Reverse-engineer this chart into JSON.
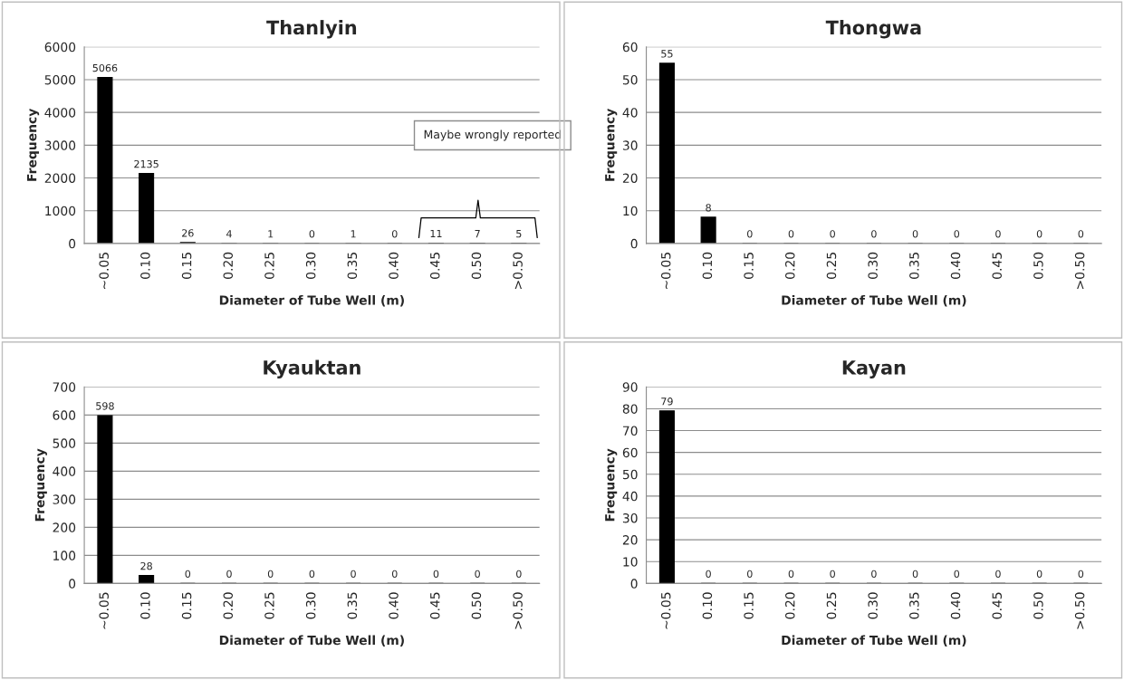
{
  "chart_data": [
    {
      "type": "bar",
      "title": "Thanlyin",
      "xlabel": "Diameter of Tube Well (m)",
      "ylabel": "Frequency",
      "categories": [
        "~0.05",
        "0.10",
        "0.15",
        "0.20",
        "0.25",
        "0.30",
        "0.35",
        "0.40",
        "0.45",
        "0.50",
        ">0.50"
      ],
      "values": [
        5066,
        2135,
        26,
        4,
        1,
        0,
        1,
        0,
        11,
        7,
        5
      ],
      "color": "#000000",
      "ylim": [
        0,
        6000
      ],
      "yticks": [
        0,
        1000,
        2000,
        3000,
        4000,
        5000,
        6000
      ],
      "grid": "y",
      "data_labels": true,
      "annotations": [
        "Maybe wrongly reported"
      ]
    },
    {
      "type": "bar",
      "title": "Thongwa",
      "xlabel": "Diameter of Tube Well (m)",
      "ylabel": "Frequency",
      "categories": [
        "~0.05",
        "0.10",
        "0.15",
        "0.20",
        "0.25",
        "0.30",
        "0.35",
        "0.40",
        "0.45",
        "0.50",
        ">0.50"
      ],
      "values": [
        55,
        8,
        0,
        0,
        0,
        0,
        0,
        0,
        0,
        0,
        0
      ],
      "color": "#000000",
      "ylim": [
        0,
        60
      ],
      "yticks": [
        0,
        10,
        20,
        30,
        40,
        50,
        60
      ],
      "grid": "y",
      "data_labels": true
    },
    {
      "type": "bar",
      "title": "Kyauktan",
      "xlabel": "Diameter of Tube Well (m)",
      "ylabel": "Frequency",
      "categories": [
        "~0.05",
        "0.10",
        "0.15",
        "0.20",
        "0.25",
        "0.30",
        "0.35",
        "0.40",
        "0.45",
        "0.50",
        ">0.50"
      ],
      "values": [
        598,
        28,
        0,
        0,
        0,
        0,
        0,
        0,
        0,
        0,
        0
      ],
      "color": "#000000",
      "ylim": [
        0,
        700
      ],
      "yticks": [
        0,
        100,
        200,
        300,
        400,
        500,
        600,
        700
      ],
      "grid": "y",
      "data_labels": true
    },
    {
      "type": "bar",
      "title": "Kayan",
      "xlabel": "Diameter of Tube Well (m)",
      "ylabel": "Frequency",
      "categories": [
        "~0.05",
        "0.10",
        "0.15",
        "0.20",
        "0.25",
        "0.30",
        "0.35",
        "0.40",
        "0.45",
        "0.50",
        ">0.50"
      ],
      "values": [
        79,
        0,
        0,
        0,
        0,
        0,
        0,
        0,
        0,
        0,
        0
      ],
      "color": "#000000",
      "ylim": [
        0,
        90
      ],
      "yticks": [
        0,
        10,
        20,
        30,
        40,
        50,
        60,
        70,
        80,
        90
      ],
      "grid": "y",
      "data_labels": true
    }
  ]
}
